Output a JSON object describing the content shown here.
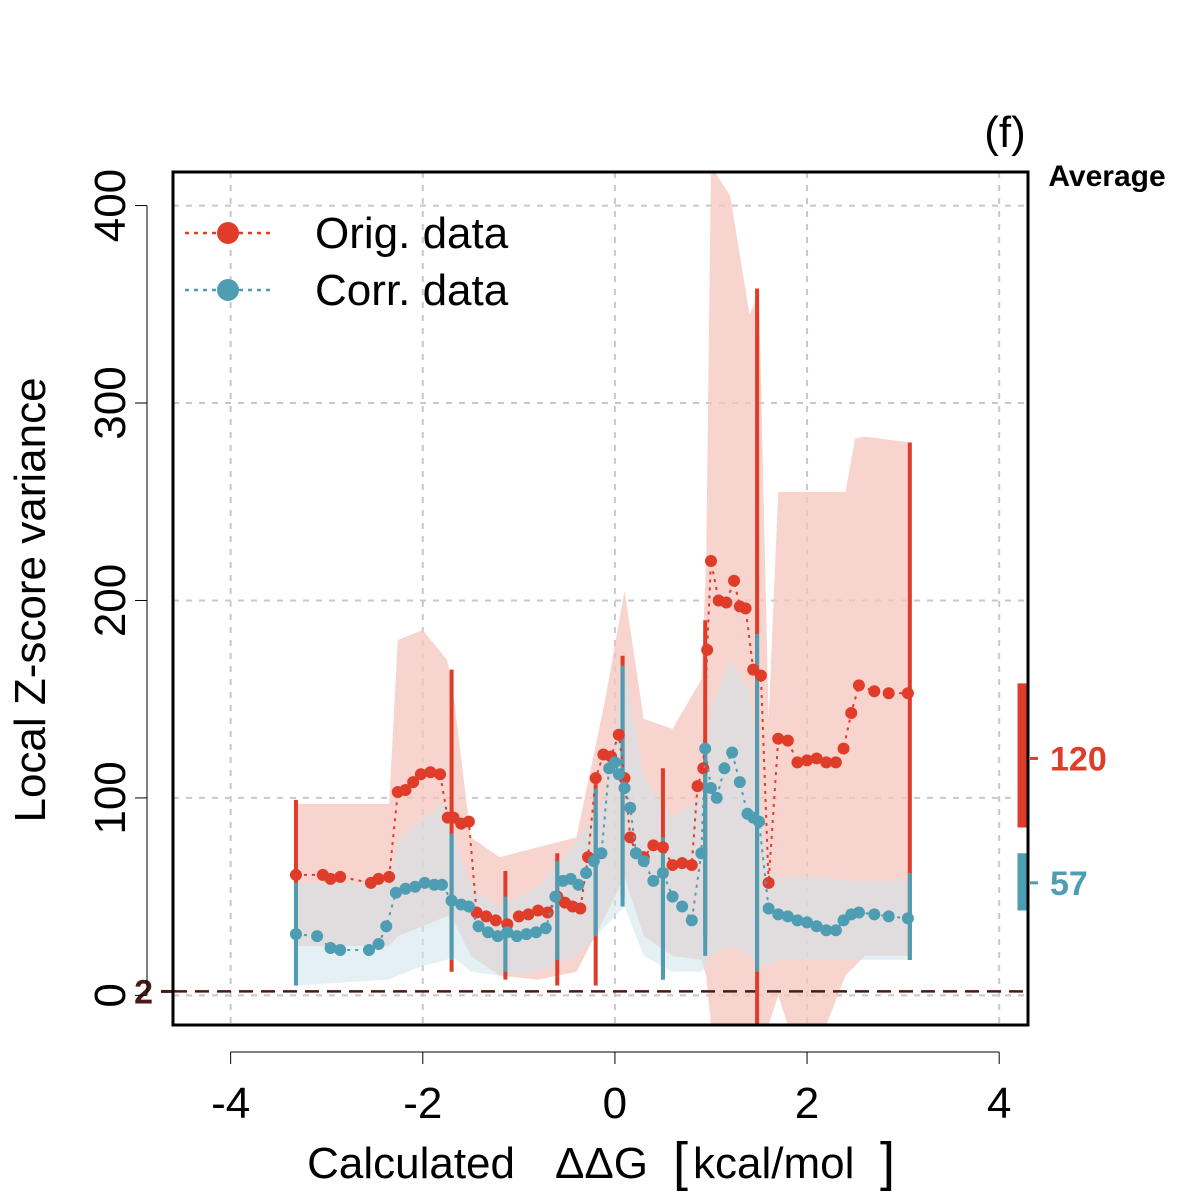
{
  "colors": {
    "orig": "#e03c2a",
    "corr": "#4f9db2",
    "orig_band": "#f4c5bc",
    "corr_band": "#cfe4ec",
    "ref_line": "#4a1a14",
    "grid": "#c8c8c8"
  },
  "chart_data": {
    "type": "scatter",
    "panel_label": "(f)",
    "xlabel": "Calculated",
    "xlabel_symbol": "ΔΔG",
    "xlabel_unit": "kcal/mol",
    "ylabel": "Local Z-score variance",
    "xlim": [
      -4.6,
      4.3
    ],
    "ylim": [
      -15,
      417
    ],
    "xticks": [
      -4,
      -2,
      0,
      2,
      4
    ],
    "xtick_labels": [
      "-4",
      "-2",
      "0",
      "2",
      "4"
    ],
    "yticks": [
      0,
      100,
      200,
      300,
      400
    ],
    "ytick_labels": [
      "0",
      "100",
      "200",
      "300",
      "400"
    ],
    "grid": true,
    "legend": {
      "position": "top-left",
      "entries": [
        "Orig. data",
        "Corr. data"
      ]
    },
    "reference_line": {
      "y": 2,
      "label": "2",
      "style": "dashed"
    },
    "average": {
      "title": "Average",
      "orig": {
        "value": 120,
        "label": "120",
        "low": 85,
        "high": 158
      },
      "corr": {
        "value": 57,
        "label": "57",
        "low": 43,
        "high": 72
      }
    },
    "series": [
      {
        "name": "Orig. data",
        "x": [
          -3.32,
          -3.04,
          -2.96,
          -2.86,
          -2.54,
          -2.46,
          -2.35,
          -2.26,
          -2.18,
          -2.1,
          -2.02,
          -1.92,
          -1.82,
          -1.74,
          -1.68,
          -1.6,
          -1.52,
          -1.44,
          -1.34,
          -1.24,
          -1.12,
          -1.0,
          -0.9,
          -0.8,
          -0.7,
          -0.6,
          -0.52,
          -0.44,
          -0.36,
          -0.28,
          -0.2,
          -0.12,
          -0.04,
          0.04,
          0.1,
          0.16,
          0.22,
          0.3,
          0.4,
          0.5,
          0.6,
          0.7,
          0.8,
          0.86,
          0.92,
          0.96,
          1.0,
          1.08,
          1.16,
          1.24,
          1.3,
          1.36,
          1.44,
          1.52,
          1.6,
          1.7,
          1.8,
          1.9,
          2.0,
          2.1,
          2.2,
          2.3,
          2.38,
          2.46,
          2.54,
          2.7,
          2.85,
          3.05
        ],
        "y": [
          61,
          61,
          59,
          60,
          57,
          59,
          60,
          103,
          104,
          108,
          112,
          113,
          112,
          90,
          90,
          87,
          88,
          42,
          40,
          38,
          36,
          40,
          41,
          43,
          42,
          50,
          47,
          45,
          44,
          70,
          110,
          122,
          121,
          132,
          110,
          80,
          72,
          70,
          76,
          75,
          66,
          67,
          66,
          106,
          115,
          175,
          220,
          200,
          199,
          210,
          197,
          196,
          165,
          162,
          57,
          130,
          129,
          118,
          119,
          120,
          118,
          118,
          125,
          143,
          157,
          154,
          153,
          153
        ],
        "errorbars": [
          {
            "x": -3.32,
            "low": 5,
            "high": 99
          },
          {
            "x": -1.7,
            "low": 12,
            "high": 165
          },
          {
            "x": -1.14,
            "low": 8,
            "high": 63
          },
          {
            "x": -0.6,
            "low": 5,
            "high": 72
          },
          {
            "x": -0.2,
            "low": 5,
            "high": 107
          },
          {
            "x": 0.08,
            "low": 50,
            "high": 172
          },
          {
            "x": 0.5,
            "low": 8,
            "high": 115
          },
          {
            "x": 0.94,
            "low": 30,
            "high": 190
          },
          {
            "x": 1.48,
            "low": -15,
            "high": 358
          },
          {
            "x": 3.07,
            "low": 18,
            "high": 280
          }
        ]
      },
      {
        "name": "Corr. data",
        "x": [
          -3.32,
          -3.1,
          -2.96,
          -2.86,
          -2.56,
          -2.46,
          -2.38,
          -2.28,
          -2.18,
          -2.08,
          -1.98,
          -1.88,
          -1.8,
          -1.7,
          -1.6,
          -1.52,
          -1.42,
          -1.32,
          -1.22,
          -1.12,
          -1.02,
          -0.92,
          -0.82,
          -0.72,
          -0.62,
          -0.54,
          -0.46,
          -0.38,
          -0.3,
          -0.22,
          -0.14,
          -0.06,
          0.0,
          0.04,
          0.1,
          0.16,
          0.22,
          0.3,
          0.4,
          0.5,
          0.6,
          0.7,
          0.8,
          0.9,
          0.94,
          1.0,
          1.06,
          1.14,
          1.22,
          1.3,
          1.38,
          1.44,
          1.5,
          1.6,
          1.7,
          1.8,
          1.9,
          2.0,
          2.1,
          2.2,
          2.3,
          2.38,
          2.46,
          2.54,
          2.7,
          2.85,
          3.05
        ],
        "y": [
          31,
          30,
          24,
          23,
          23,
          26,
          35,
          52,
          54,
          55,
          57,
          56,
          56,
          48,
          46,
          45,
          35,
          32,
          30,
          32,
          30,
          31,
          32,
          34,
          50,
          58,
          59,
          56,
          62,
          68,
          72,
          115,
          118,
          112,
          105,
          95,
          72,
          68,
          58,
          62,
          50,
          45,
          38,
          72,
          125,
          105,
          100,
          115,
          123,
          108,
          92,
          90,
          88,
          44,
          41,
          40,
          38,
          37,
          35,
          33,
          33,
          38,
          41,
          42,
          41,
          40,
          39
        ],
        "errorbars": [
          {
            "x": -3.32,
            "low": 5,
            "high": 57
          },
          {
            "x": -1.7,
            "low": 18,
            "high": 82
          },
          {
            "x": -1.14,
            "low": 12,
            "high": 50
          },
          {
            "x": -0.6,
            "low": 18,
            "high": 68
          },
          {
            "x": -0.2,
            "low": 30,
            "high": 105
          },
          {
            "x": 0.08,
            "low": 45,
            "high": 167
          },
          {
            "x": 0.5,
            "low": 8,
            "high": 80
          },
          {
            "x": 0.94,
            "low": 20,
            "high": 127
          },
          {
            "x": 1.48,
            "low": 12,
            "high": 183
          },
          {
            "x": 3.07,
            "low": 18,
            "high": 62
          }
        ]
      }
    ],
    "bands": [
      {
        "name": "Orig. data range",
        "x": [
          -3.32,
          -2.35,
          -2.26,
          -2.0,
          -1.75,
          -1.7,
          -1.5,
          -1.2,
          -0.8,
          -0.4,
          -0.1,
          0.1,
          0.3,
          0.6,
          0.9,
          0.95,
          1.0,
          1.2,
          1.4,
          1.5,
          1.6,
          1.7,
          1.8,
          2.0,
          2.2,
          2.4,
          2.5,
          2.6,
          3.07
        ],
        "low": [
          25,
          25,
          30,
          35,
          40,
          40,
          20,
          10,
          8,
          12,
          40,
          60,
          30,
          20,
          18,
          10,
          -15,
          -15,
          -15,
          -15,
          -15,
          0,
          -15,
          -15,
          -15,
          10,
          15,
          20,
          20
        ],
        "high": [
          97,
          97,
          180,
          185,
          170,
          160,
          80,
          70,
          75,
          80,
          150,
          205,
          140,
          135,
          160,
          220,
          420,
          405,
          345,
          355,
          140,
          255,
          255,
          255,
          255,
          255,
          282,
          283,
          280
        ]
      },
      {
        "name": "Corr. data range",
        "x": [
          -3.32,
          -2.35,
          -2.26,
          -2.0,
          -1.75,
          -1.7,
          -1.5,
          -1.2,
          -0.8,
          -0.4,
          -0.1,
          0.1,
          0.3,
          0.6,
          0.9,
          0.95,
          1.0,
          1.2,
          1.4,
          1.5,
          1.6,
          1.7,
          1.8,
          2.0,
          2.2,
          2.4,
          2.5,
          2.6,
          3.07
        ],
        "low": [
          5,
          8,
          10,
          15,
          18,
          20,
          12,
          10,
          12,
          20,
          35,
          45,
          20,
          12,
          12,
          15,
          20,
          25,
          20,
          15,
          15,
          18,
          18,
          18,
          18,
          18,
          18,
          18,
          18
        ],
        "high": [
          57,
          57,
          78,
          90,
          98,
          85,
          55,
          45,
          55,
          78,
          100,
          168,
          110,
          90,
          100,
          125,
          145,
          170,
          155,
          110,
          62,
          60,
          60,
          60,
          60,
          58,
          58,
          58,
          58
        ]
      }
    ]
  }
}
